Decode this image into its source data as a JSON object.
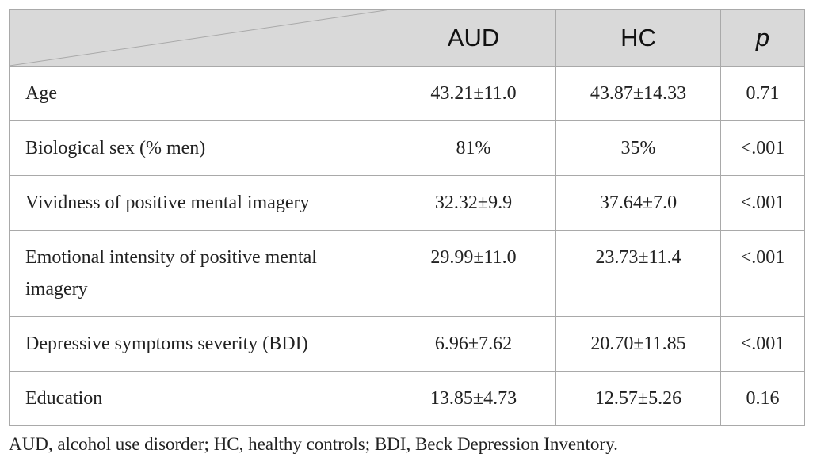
{
  "table": {
    "headers": [
      "",
      "AUD",
      "HC",
      "p"
    ],
    "rows": [
      {
        "label": "Age",
        "aud": "43.21±11.0",
        "hc": "43.87±14.33",
        "p": "0.71"
      },
      {
        "label": "Biological sex (% men)",
        "aud": "81%",
        "hc": "35%",
        "p": "<.001"
      },
      {
        "label": "Vividness of positive mental imagery",
        "aud": "32.32±9.9",
        "hc": "37.64±7.0",
        "p": "<.001"
      },
      {
        "label": "Emotional intensity of positive mental imagery",
        "aud": "29.99±11.0",
        "hc": "23.73±11.4",
        "p": "<.001"
      },
      {
        "label": "Depressive symptoms severity (BDI)",
        "aud": "6.96±7.62",
        "hc": "20.70±11.85",
        "p": "<.001"
      },
      {
        "label": "Education",
        "aud": "13.85±4.73",
        "hc": "12.57±5.26",
        "p": "0.16"
      }
    ]
  },
  "footnote": "AUD, alcohol use disorder; HC, healthy controls; BDI, Beck Depression Inventory.",
  "colors": {
    "header_bg": "#d9d9d9",
    "border": "#a9a9a9",
    "text": "#222222"
  }
}
